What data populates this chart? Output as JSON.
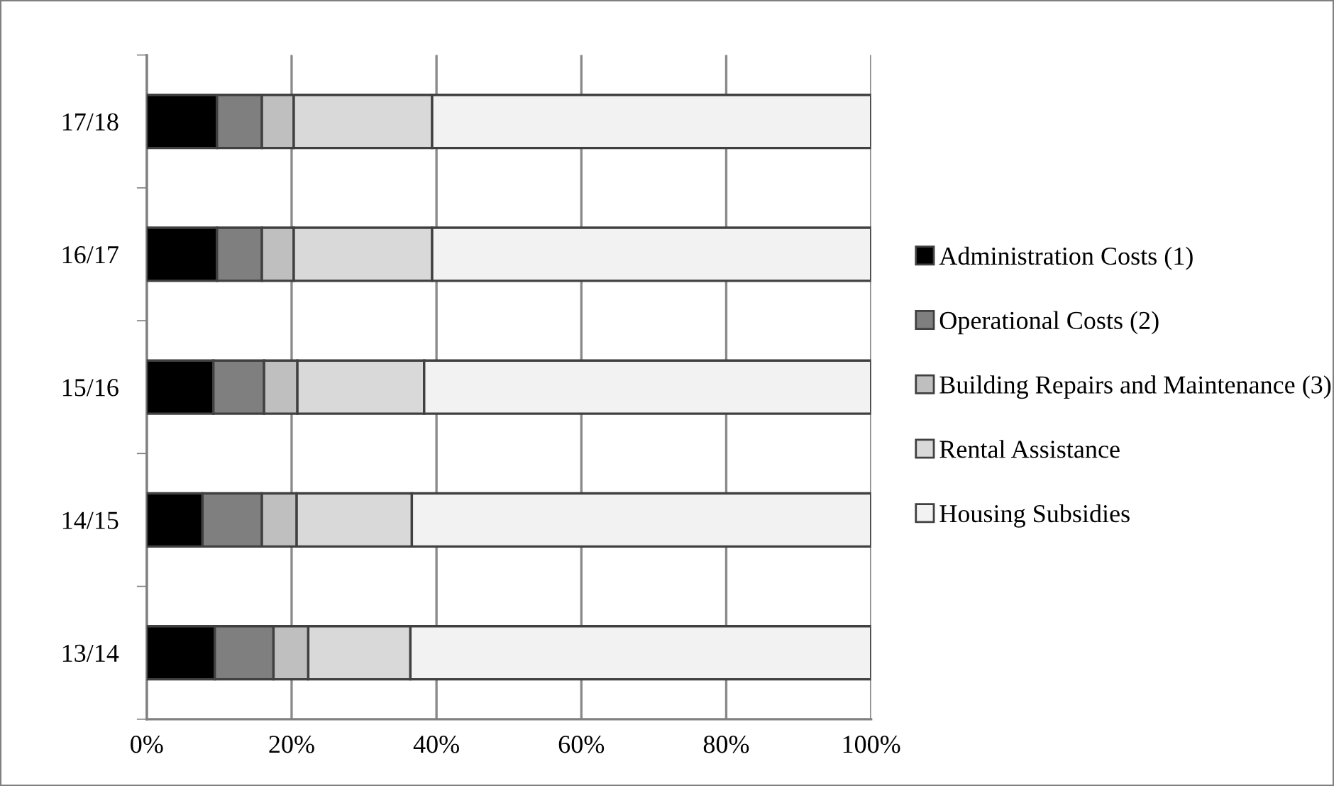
{
  "chart_data": {
    "type": "bar",
    "orientation": "horizontal",
    "stacked": true,
    "categories": [
      "17/18",
      "16/17",
      "15/16",
      "14/15",
      "13/14"
    ],
    "series": [
      {
        "name": "Administration Costs (1)",
        "color": "#000000",
        "values": [
          9.7,
          9.7,
          9.2,
          7.7,
          9.4
        ]
      },
      {
        "name": "Operational Costs (2)",
        "color": "#7f7f7f",
        "values": [
          6.2,
          6.2,
          7.0,
          8.2,
          8.1
        ]
      },
      {
        "name": "Building Repairs and Maintenance (3)",
        "color": "#bfbfbf",
        "values": [
          4.4,
          4.4,
          4.6,
          4.8,
          4.8
        ]
      },
      {
        "name": "Rental Assistance",
        "color": "#d9d9d9",
        "values": [
          19.1,
          19.1,
          17.5,
          15.9,
          14.1
        ]
      },
      {
        "name": "Housing Subsidies",
        "color": "#f2f2f2",
        "values": [
          60.6,
          60.6,
          61.7,
          63.4,
          63.6
        ]
      }
    ],
    "xlim": [
      0,
      100
    ],
    "xticks": [
      {
        "value": 0,
        "label": "0%"
      },
      {
        "value": 20,
        "label": "20%"
      },
      {
        "value": 40,
        "label": "40%"
      },
      {
        "value": 60,
        "label": "60%"
      },
      {
        "value": 80,
        "label": "80%"
      },
      {
        "value": 100,
        "label": "100%"
      }
    ],
    "grid": "x",
    "legend": "right"
  }
}
